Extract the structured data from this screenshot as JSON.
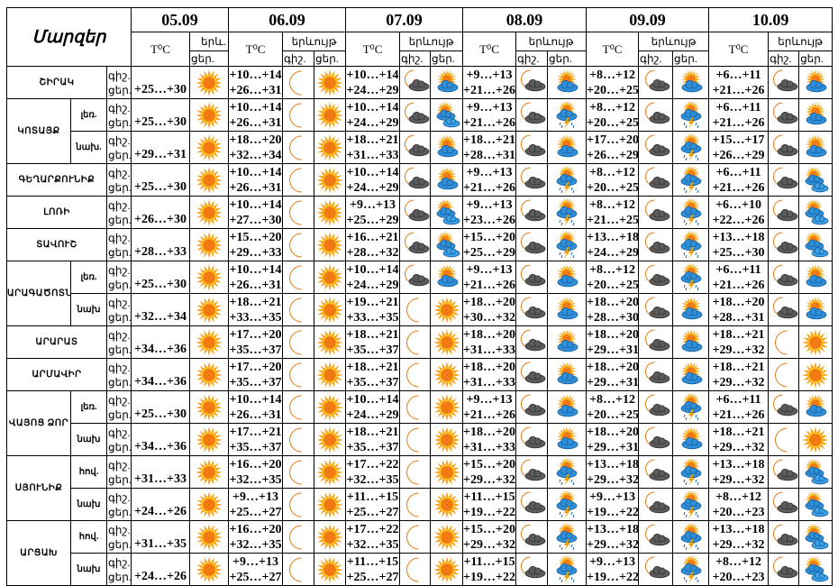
{
  "header": {
    "title": "Մարզեր",
    "temp_label": "T⁰C",
    "first_day_phenomenon": "երև.",
    "phenomenon": "երևույթ",
    "night": "գիշ.",
    "day": "ցեր.",
    "dates": [
      "05.09",
      "06.09",
      "07.09",
      "08.09",
      "09.09",
      "10.09"
    ]
  },
  "row_labels": {
    "night": "գիշ.",
    "day": "ցեր."
  },
  "regions": [
    {
      "name": "ՇԻՐԱԿ",
      "rows": [
        {
          "sub": "",
          "d05": {
            "day": "+25…+30",
            "icon": "sun"
          },
          "days": [
            {
              "night": "+10…+14",
              "day": "+26…+31",
              "icons": [
                "moon",
                "sun"
              ]
            },
            {
              "night": "+10…+14",
              "day": "+24…+29",
              "icons": [
                "moon-cloud",
                "partly-cloudy"
              ]
            },
            {
              "night": "+9…+13",
              "day": "+21…+26",
              "icons": [
                "moon-cloud",
                "partly-cloudy"
              ]
            },
            {
              "night": "+8…+12",
              "day": "+20…+25",
              "icons": [
                "moon-cloud",
                "partly-cloudy"
              ]
            },
            {
              "night": "+6…+11",
              "day": "+21…+26",
              "icons": [
                "moon-cloud",
                "partly-cloudy"
              ]
            }
          ]
        }
      ]
    },
    {
      "name": "ԿՈՏԱՅՔ",
      "rows": [
        {
          "sub": "լեռ.",
          "d05": {
            "day": "+25…+30",
            "icon": "sun"
          },
          "days": [
            {
              "night": "+10…+14",
              "day": "+26…+31",
              "icons": [
                "moon",
                "sun"
              ]
            },
            {
              "night": "+10…+14",
              "day": "+24…+29",
              "icons": [
                "moon-cloud",
                "mostly-cloudy"
              ]
            },
            {
              "night": "+9…+13",
              "day": "+21…+26",
              "icons": [
                "moon-cloud",
                "thunderstorm"
              ]
            },
            {
              "night": "+8…+12",
              "day": "+20…+25",
              "icons": [
                "moon-cloud",
                "thunderstorm"
              ]
            },
            {
              "night": "+6…+11",
              "day": "+21…+26",
              "icons": [
                "moon-cloud",
                "partly-cloudy"
              ]
            }
          ]
        },
        {
          "sub": "նախ.",
          "d05": {
            "day": "+29…+31",
            "icon": "sun"
          },
          "days": [
            {
              "night": "+18…+20",
              "day": "+32…+34",
              "icons": [
                "moon",
                "sun"
              ]
            },
            {
              "night": "+18…+21",
              "day": "+31…+33",
              "icons": [
                "moon-cloud",
                "partly-cloudy"
              ]
            },
            {
              "night": "+18…+21",
              "day": "+28…+31",
              "icons": [
                "moon-cloud",
                "partly-cloudy"
              ]
            },
            {
              "night": "+17…+20",
              "day": "+26…+29",
              "icons": [
                "moon-cloud",
                "thunderstorm"
              ]
            },
            {
              "night": "+15…+17",
              "day": "+26…+29",
              "icons": [
                "moon-cloud",
                "partly-cloudy"
              ]
            }
          ]
        }
      ]
    },
    {
      "name": "ԳԵՂԱՐՔՈՒՆԻՔ",
      "rows": [
        {
          "sub": "",
          "d05": {
            "day": "+25…+30",
            "icon": "sun"
          },
          "days": [
            {
              "night": "+10…+14",
              "day": "+26…+31",
              "icons": [
                "moon",
                "sun"
              ]
            },
            {
              "night": "+10…+14",
              "day": "+24…+29",
              "icons": [
                "moon-cloud",
                "partly-cloudy"
              ]
            },
            {
              "night": "+9…+13",
              "day": "+21…+26",
              "icons": [
                "moon-cloud",
                "thunderstorm"
              ]
            },
            {
              "night": "+8…+12",
              "day": "+20…+25",
              "icons": [
                "moon-cloud",
                "thunderstorm"
              ]
            },
            {
              "night": "+6…+11",
              "day": "+21…+26",
              "icons": [
                "moon-cloud",
                "mostly-cloudy"
              ]
            }
          ]
        }
      ]
    },
    {
      "name": "ԼՈՌԻ",
      "rows": [
        {
          "sub": "",
          "d05": {
            "day": "+26…+30",
            "icon": "sun"
          },
          "days": [
            {
              "night": "+10…+14",
              "day": "+27…+30",
              "icons": [
                "moon",
                "sun"
              ]
            },
            {
              "night": "+9…+13",
              "day": "+25…+29",
              "icons": [
                "moon-cloud",
                "mostly-cloudy"
              ]
            },
            {
              "night": "+9…+13",
              "day": "+23…+26",
              "icons": [
                "moon-cloud",
                "thunderstorm"
              ]
            },
            {
              "night": "+8…+12",
              "day": "+21…+25",
              "icons": [
                "moon-cloud",
                "thunderstorm"
              ]
            },
            {
              "night": "+6…+10",
              "day": "+22…+26",
              "icons": [
                "moon-cloud",
                "mostly-cloudy"
              ]
            }
          ]
        }
      ]
    },
    {
      "name": "ՏԱՎՈՒՇ",
      "rows": [
        {
          "sub": "",
          "d05": {
            "day": "+28…+33",
            "icon": "sun"
          },
          "days": [
            {
              "night": "+15…+20",
              "day": "+29…+33",
              "icons": [
                "moon",
                "sun"
              ]
            },
            {
              "night": "+16…+21",
              "day": "+28…+32",
              "icons": [
                "moon-cloud",
                "mostly-cloudy"
              ]
            },
            {
              "night": "+15…+20",
              "day": "+25…+29",
              "icons": [
                "moon-cloud",
                "thunderstorm"
              ]
            },
            {
              "night": "+13…+18",
              "day": "+24…+29",
              "icons": [
                "moon-cloud",
                "thunderstorm"
              ]
            },
            {
              "night": "+13…+18",
              "day": "+25…+30",
              "icons": [
                "moon-cloud",
                "mostly-cloudy"
              ]
            }
          ]
        }
      ]
    },
    {
      "name": "ԱՐԱԳԱԾՈՏՆ",
      "rows": [
        {
          "sub": "լեռ.",
          "d05": {
            "day": "+25…+30",
            "icon": "sun"
          },
          "days": [
            {
              "night": "+10…+14",
              "day": "+26…+31",
              "icons": [
                "moon",
                "sun"
              ]
            },
            {
              "night": "+10…+14",
              "day": "+24…+29",
              "icons": [
                "moon-cloud",
                "partly-cloudy"
              ]
            },
            {
              "night": "+9…+13",
              "day": "+21…+26",
              "icons": [
                "moon-cloud",
                "partly-cloudy"
              ]
            },
            {
              "night": "+8…+12",
              "day": "+20…+25",
              "icons": [
                "moon-cloud",
                "thunderstorm"
              ]
            },
            {
              "night": "+6…+11",
              "day": "+21…+26",
              "icons": [
                "moon-cloud",
                "partly-cloudy"
              ]
            }
          ]
        },
        {
          "sub": "նախ",
          "d05": {
            "day": "+32…+34",
            "icon": "sun"
          },
          "days": [
            {
              "night": "+18…+21",
              "day": "+33…+35",
              "icons": [
                "moon",
                "sun"
              ]
            },
            {
              "night": "+19…+21",
              "day": "+33…+35",
              "icons": [
                "moon",
                "sun"
              ]
            },
            {
              "night": "+18…+20",
              "day": "+30…+32",
              "icons": [
                "moon-cloud",
                "partly-cloudy"
              ]
            },
            {
              "night": "+18…+20",
              "day": "+28…+30",
              "icons": [
                "moon-cloud",
                "partly-cloudy"
              ]
            },
            {
              "night": "+18…+20",
              "day": "+28…+31",
              "icons": [
                "moon-cloud",
                "partly-cloudy"
              ]
            }
          ]
        }
      ]
    },
    {
      "name": "ԱՐԱՐԱՏ",
      "rows": [
        {
          "sub": "",
          "d05": {
            "day": "+34…+36",
            "icon": "sun"
          },
          "days": [
            {
              "night": "+17…+20",
              "day": "+35…+37",
              "icons": [
                "moon",
                "sun"
              ]
            },
            {
              "night": "+18…+21",
              "day": "+35…+37",
              "icons": [
                "moon",
                "sun"
              ]
            },
            {
              "night": "+18…+20",
              "day": "+31…+33",
              "icons": [
                "moon-cloud",
                "partly-cloudy"
              ]
            },
            {
              "night": "+18…+20",
              "day": "+29…+31",
              "icons": [
                "moon-cloud",
                "partly-cloudy"
              ]
            },
            {
              "night": "+18…+21",
              "day": "+29…+32",
              "icons": [
                "moon",
                "sun"
              ]
            }
          ]
        }
      ]
    },
    {
      "name": "ԱՐՄԱՎԻՐ",
      "rows": [
        {
          "sub": "",
          "d05": {
            "day": "+34…+36",
            "icon": "sun"
          },
          "days": [
            {
              "night": "+17…+20",
              "day": "+35…+37",
              "icons": [
                "moon",
                "sun"
              ]
            },
            {
              "night": "+18…+21",
              "day": "+35…+37",
              "icons": [
                "moon",
                "sun"
              ]
            },
            {
              "night": "+18…+20",
              "day": "+31…+33",
              "icons": [
                "moon-cloud",
                "partly-cloudy"
              ]
            },
            {
              "night": "+18…+20",
              "day": "+29…+31",
              "icons": [
                "moon-cloud",
                "partly-cloudy"
              ]
            },
            {
              "night": "+18…+21",
              "day": "+29…+32",
              "icons": [
                "moon",
                "sun"
              ]
            }
          ]
        }
      ]
    },
    {
      "name": "ՎԱՅՈՑ ՁՈՐ",
      "rows": [
        {
          "sub": "լեռ.",
          "d05": {
            "day": "+25…+30",
            "icon": "sun"
          },
          "days": [
            {
              "night": "+10…+14",
              "day": "+26…+31",
              "icons": [
                "moon",
                "sun"
              ]
            },
            {
              "night": "+10…+14",
              "day": "+24…+29",
              "icons": [
                "moon",
                "sun"
              ]
            },
            {
              "night": "+9…+13",
              "day": "+21…+26",
              "icons": [
                "moon-cloud",
                "partly-cloudy"
              ]
            },
            {
              "night": "+8…+12",
              "day": "+20…+25",
              "icons": [
                "moon-cloud",
                "thunderstorm"
              ]
            },
            {
              "night": "+6…+11",
              "day": "+21…+26",
              "icons": [
                "moon-cloud",
                "partly-cloudy"
              ]
            }
          ]
        },
        {
          "sub": "նախ",
          "d05": {
            "day": "+34…+36",
            "icon": "sun"
          },
          "days": [
            {
              "night": "+17…+21",
              "day": "+35…+37",
              "icons": [
                "moon",
                "sun"
              ]
            },
            {
              "night": "+18…+21",
              "day": "+35…+37",
              "icons": [
                "moon",
                "sun"
              ]
            },
            {
              "night": "+18…+20",
              "day": "+31…+33",
              "icons": [
                "moon-cloud",
                "partly-cloudy"
              ]
            },
            {
              "night": "+18…+20",
              "day": "+29…+31",
              "icons": [
                "moon-cloud",
                "partly-cloudy"
              ]
            },
            {
              "night": "+18…+21",
              "day": "+29…+32",
              "icons": [
                "moon",
                "sun"
              ]
            }
          ]
        }
      ]
    },
    {
      "name": "ՍՅՈՒՆԻՔ",
      "rows": [
        {
          "sub": "հով.",
          "d05": {
            "day": "+31…+33",
            "icon": "sun"
          },
          "days": [
            {
              "night": "+16…+20",
              "day": "+32…+35",
              "icons": [
                "moon",
                "sun"
              ]
            },
            {
              "night": "+17…+22",
              "day": "+32…+35",
              "icons": [
                "moon",
                "sun"
              ]
            },
            {
              "night": "+15…+20",
              "day": "+29…+32",
              "icons": [
                "moon-cloud",
                "thunderstorm"
              ]
            },
            {
              "night": "+13…+18",
              "day": "+29…+32",
              "icons": [
                "moon-cloud",
                "thunderstorm"
              ]
            },
            {
              "night": "+13…+18",
              "day": "+29…+32",
              "icons": [
                "moon-cloud",
                "mostly-cloudy"
              ]
            }
          ]
        },
        {
          "sub": "նախ",
          "d05": {
            "day": "+24…+26",
            "icon": "sun"
          },
          "days": [
            {
              "night": "+9…+13",
              "day": "+25…+27",
              "icons": [
                "moon",
                "sun"
              ]
            },
            {
              "night": "+11…+15",
              "day": "+25…+27",
              "icons": [
                "moon",
                "sun"
              ]
            },
            {
              "night": "+11…+15",
              "day": "+19…+22",
              "icons": [
                "moon-cloud",
                "thunderstorm"
              ]
            },
            {
              "night": "+9…+13",
              "day": "+19…+22",
              "icons": [
                "moon-cloud",
                "thunderstorm"
              ]
            },
            {
              "night": "+8…+12",
              "day": "+20…+23",
              "icons": [
                "moon-cloud",
                "mostly-cloudy"
              ]
            }
          ]
        }
      ]
    },
    {
      "name": "ԱՐՑԱԽ",
      "rows": [
        {
          "sub": "հով.",
          "d05": {
            "day": "+31…+35",
            "icon": "sun"
          },
          "days": [
            {
              "night": "+16…+20",
              "day": "+32…+35",
              "icons": [
                "moon",
                "sun"
              ]
            },
            {
              "night": "+17…+22",
              "day": "+32…+35",
              "icons": [
                "moon",
                "sun"
              ]
            },
            {
              "night": "+15…+20",
              "day": "+29…+32",
              "icons": [
                "moon-cloud",
                "thunderstorm"
              ]
            },
            {
              "night": "+13…+18",
              "day": "+29…+32",
              "icons": [
                "moon-cloud",
                "thunderstorm"
              ]
            },
            {
              "night": "+13…+18",
              "day": "+29…+32",
              "icons": [
                "moon-cloud",
                "mostly-cloudy"
              ]
            }
          ]
        },
        {
          "sub": "նախ",
          "d05": {
            "day": "+24…+26",
            "icon": "sun"
          },
          "days": [
            {
              "night": "+9…+13",
              "day": "+25…+27",
              "icons": [
                "moon",
                "sun"
              ]
            },
            {
              "night": "+11…+15",
              "day": "+25…+27",
              "icons": [
                "moon",
                "sun"
              ]
            },
            {
              "night": "+11…+15",
              "day": "+19…+22",
              "icons": [
                "moon-cloud",
                "thunderstorm"
              ]
            },
            {
              "night": "+9…+13",
              "day": "+19…+22",
              "icons": [
                "moon-cloud",
                "thunderstorm"
              ]
            },
            {
              "night": "+8…+12",
              "day": "+20…+23",
              "icons": [
                "moon-cloud",
                "mostly-cloudy"
              ]
            }
          ]
        }
      ]
    }
  ]
}
